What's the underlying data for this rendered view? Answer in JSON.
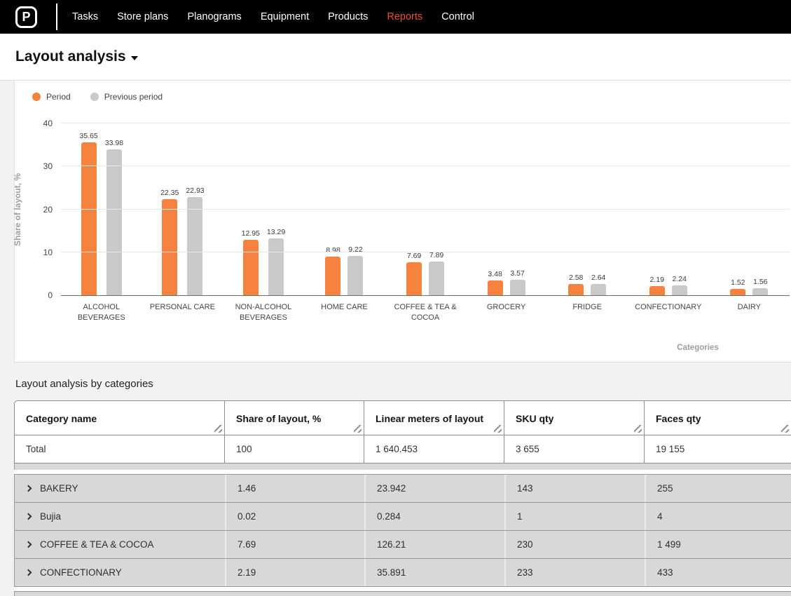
{
  "nav": {
    "logo_letter": "P",
    "items": [
      {
        "label": "Tasks",
        "active": false
      },
      {
        "label": "Store plans",
        "active": false
      },
      {
        "label": "Planograms",
        "active": false
      },
      {
        "label": "Equipment",
        "active": false
      },
      {
        "label": "Products",
        "active": false
      },
      {
        "label": "Reports",
        "active": true
      },
      {
        "label": "Control",
        "active": false
      }
    ]
  },
  "page": {
    "title": "Layout analysis"
  },
  "colors": {
    "nav_active": "#E8532C",
    "period_orange": "#F5833F",
    "previous_gray": "#C9C9C9",
    "grid": "#e6e6e6"
  },
  "chart_data": {
    "type": "bar",
    "title": "",
    "categories": [
      "ALCOHOL BEVERAGES",
      "PERSONAL CARE",
      "NON-ALCOHOL BEVERAGES",
      "HOME CARE",
      "COFFEE & TEA & COCOA",
      "GROCERY",
      "FRIDGE",
      "CONFECTIONARY",
      "DAIRY"
    ],
    "series": [
      {
        "name": "Period",
        "color": "#F5833F",
        "values": [
          35.65,
          22.35,
          12.95,
          8.98,
          7.69,
          3.48,
          2.58,
          2.19,
          1.52
        ]
      },
      {
        "name": "Previous period",
        "color": "#C9C9C9",
        "values": [
          33.98,
          22.93,
          13.29,
          9.22,
          7.89,
          3.57,
          2.64,
          2.24,
          1.56
        ]
      }
    ],
    "xlabel": "Categories",
    "ylabel": "Share of layout, %",
    "ylim": [
      0,
      40
    ],
    "yticks": [
      0,
      10,
      20,
      30,
      40
    ],
    "grid": true,
    "legend_position": "top-left"
  },
  "table_section": {
    "title": "Layout analysis by categories",
    "columns": [
      "Category name",
      "Share of layout, %",
      "Linear meters of layout",
      "SKU qty",
      "Faces qty"
    ],
    "total_row": {
      "label": "Total",
      "values": [
        "100",
        "1 640.453",
        "3 655",
        "19 155"
      ]
    },
    "rows": [
      {
        "label": "BAKERY",
        "values": [
          "1.46",
          "23.942",
          "143",
          "255"
        ]
      },
      {
        "label": "Bujia",
        "values": [
          "0.02",
          "0.284",
          "1",
          "4"
        ]
      },
      {
        "label": "COFFEE & TEA & COCOA",
        "values": [
          "7.69",
          "126.21",
          "230",
          "1 499"
        ]
      },
      {
        "label": "CONFECTIONARY",
        "values": [
          "2.19",
          "35.891",
          "233",
          "433"
        ]
      }
    ]
  }
}
